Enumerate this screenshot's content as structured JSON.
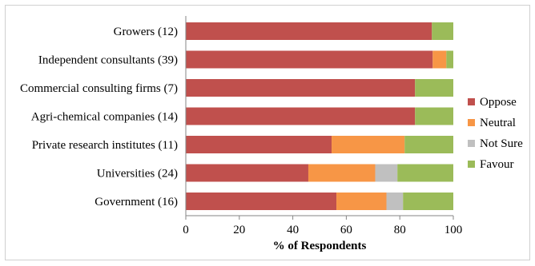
{
  "chart_data": {
    "type": "bar",
    "orientation": "horizontal",
    "stacked": true,
    "categories": [
      "Growers (12)",
      "Independent consultants (39)",
      "Commercial consulting firms (7)",
      "Agri-chemical companies (14)",
      "Private research institutes (11)",
      "Universities (24)",
      "Government (16)"
    ],
    "series": [
      {
        "name": "Oppose",
        "color": "#c0504d",
        "values": [
          92,
          92.3,
          85.7,
          85.7,
          54.5,
          45.8,
          56.3
        ]
      },
      {
        "name": "Neutral",
        "color": "#f79646",
        "values": [
          0,
          5.1,
          0,
          0,
          27.3,
          25.0,
          18.7
        ]
      },
      {
        "name": "Not Sure",
        "color": "#c0c0c0",
        "values": [
          0,
          0,
          0,
          0,
          0,
          8.3,
          6.2
        ]
      },
      {
        "name": "Favour",
        "color": "#9bbb59",
        "values": [
          8,
          2.6,
          14.3,
          14.3,
          18.2,
          20.9,
          18.8
        ]
      }
    ],
    "xlabel": "% of Respondents",
    "xlim": [
      0,
      100
    ],
    "xticks": [
      "0",
      "20",
      "40",
      "60",
      "80",
      "100"
    ],
    "grid": false,
    "legend_position": "right"
  }
}
